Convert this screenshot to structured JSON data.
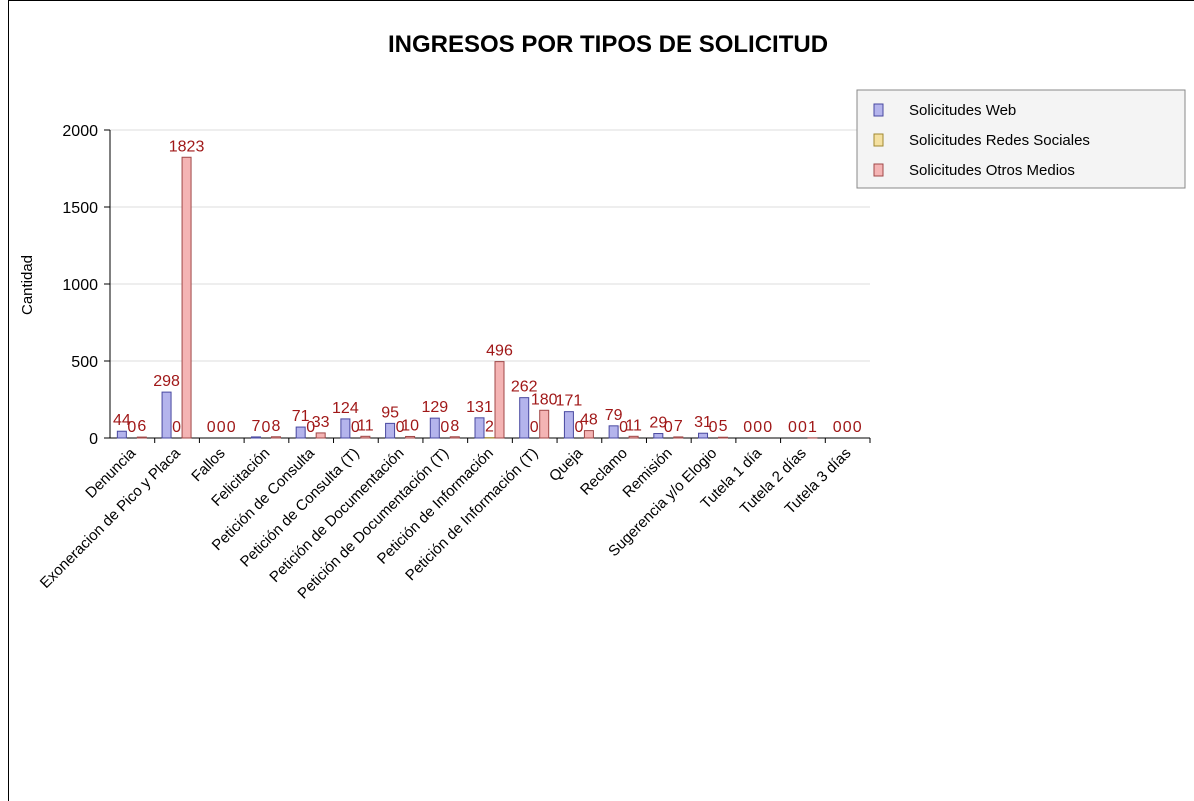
{
  "chart_data": {
    "type": "bar",
    "title": "INGRESOS POR TIPOS DE SOLICITUD",
    "y_label": "Cantidad",
    "categories": [
      "Denuncia",
      "Exoneracion de Pico y Placa",
      "Fallos",
      "Felicitación",
      "Petición de Consulta",
      "Petición de Consulta (T)",
      "Petición de Documentación",
      "Petición de Documentación (T)",
      "Petición de Información",
      "Petición de Información (T)",
      "Queja",
      "Reclamo",
      "Remisión",
      "Sugerencia y/o Elogio",
      "Tutela 1 día",
      "Tutela 2 días",
      "Tutela 3 días"
    ],
    "series": [
      {
        "name": "Solicitudes Web",
        "color": "#b4b4ec",
        "values": [
          44,
          298,
          0,
          7,
          71,
          124,
          95,
          129,
          131,
          262,
          171,
          79,
          29,
          31,
          0,
          0,
          0
        ]
      },
      {
        "name": "Solicitudes Redes Sociales",
        "color": "#f4e0a0",
        "values": [
          0,
          0,
          0,
          0,
          0,
          0,
          0,
          0,
          2,
          0,
          0,
          0,
          0,
          0,
          0,
          0,
          0
        ]
      },
      {
        "name": "Solicitudes Otros Medios",
        "color": "#f4b4b4",
        "values": [
          6,
          1823,
          0,
          8,
          33,
          11,
          10,
          8,
          496,
          180,
          48,
          11,
          7,
          5,
          0,
          1,
          0
        ]
      }
    ],
    "ylim": [
      0,
      2000
    ],
    "yticks": [
      0,
      500,
      1000,
      1500,
      2000
    ],
    "grid": true,
    "legend": "upper right"
  }
}
